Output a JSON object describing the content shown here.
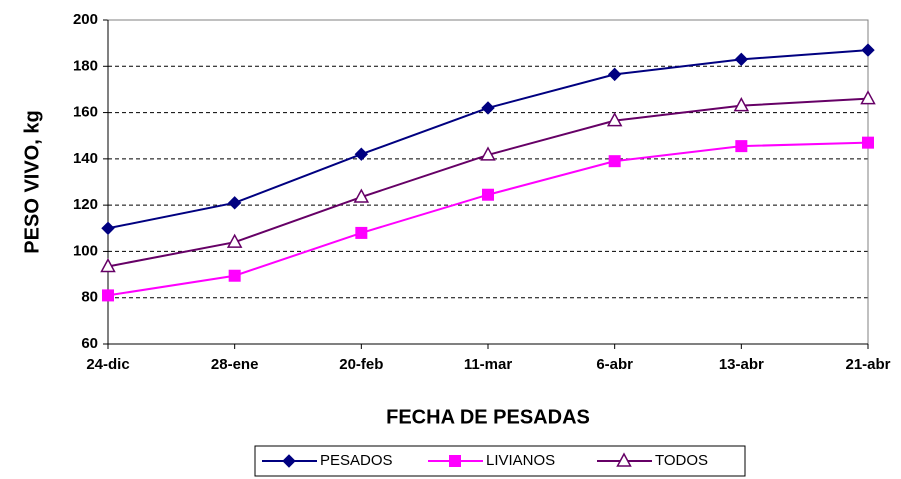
{
  "chart_data": {
    "type": "line",
    "x_label": "FECHA DE PESADAS",
    "y_label": "PESO VIVO, kg",
    "categories": [
      "24-dic",
      "28-ene",
      "20-feb",
      "11-mar",
      "6-abr",
      "13-abr",
      "21-abr"
    ],
    "series": [
      {
        "name": "PESADOS",
        "color": "#000080",
        "marker": "diamond",
        "values": [
          110,
          121,
          142,
          162,
          176.5,
          183,
          187
        ]
      },
      {
        "name": "LIVIANOS",
        "color": "#ff00ff",
        "marker": "square",
        "values": [
          81,
          89.5,
          108,
          124.5,
          139,
          145.5,
          147
        ]
      },
      {
        "name": "TODOS",
        "color": "#660066",
        "marker": "triangle",
        "values": [
          93.5,
          104,
          123.5,
          141.7,
          156.5,
          163,
          166
        ]
      }
    ],
    "ylim": [
      60,
      200
    ],
    "yticks": [
      60,
      80,
      100,
      120,
      140,
      160,
      180,
      200
    ],
    "grid": true,
    "legend": "bottom"
  }
}
